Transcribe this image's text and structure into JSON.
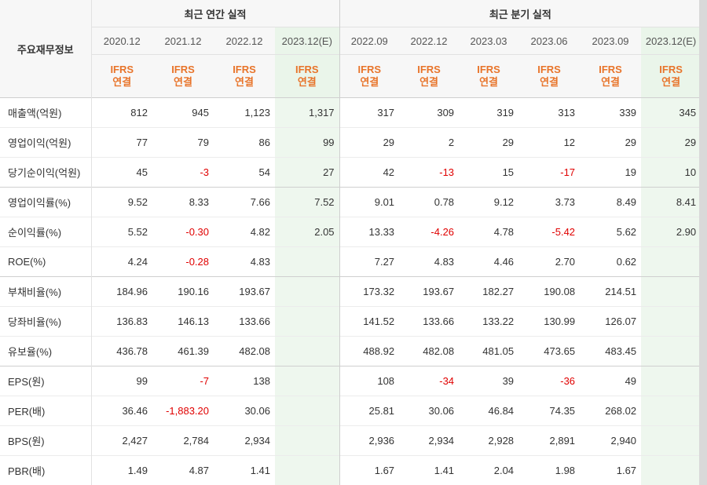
{
  "header": {
    "label_title": "주요재무정보",
    "group_annual": "최근 연간 실적",
    "group_quarter": "최근 분기 실적",
    "periods": [
      "2020.12",
      "2021.12",
      "2022.12",
      "2023.12(E)",
      "2022.09",
      "2022.12",
      "2023.03",
      "2023.06",
      "2023.09",
      "2023.12(E)"
    ],
    "ifrs_top": "IFRS",
    "ifrs_bottom": "연결"
  },
  "rows": [
    {
      "label": "매출액(억원)",
      "values": [
        "812",
        "945",
        "1,123",
        "1,317",
        "317",
        "309",
        "319",
        "313",
        "339",
        "345"
      ]
    },
    {
      "label": "영업이익(억원)",
      "values": [
        "77",
        "79",
        "86",
        "99",
        "29",
        "2",
        "29",
        "12",
        "29",
        "29"
      ]
    },
    {
      "label": "당기순이익(억원)",
      "values": [
        "45",
        "-3",
        "54",
        "27",
        "42",
        "-13",
        "15",
        "-17",
        "19",
        "10"
      ]
    },
    {
      "label": "영업이익률(%)",
      "values": [
        "9.52",
        "8.33",
        "7.66",
        "7.52",
        "9.01",
        "0.78",
        "9.12",
        "3.73",
        "8.49",
        "8.41"
      ]
    },
    {
      "label": "순이익률(%)",
      "values": [
        "5.52",
        "-0.30",
        "4.82",
        "2.05",
        "13.33",
        "-4.26",
        "4.78",
        "-5.42",
        "5.62",
        "2.90"
      ]
    },
    {
      "label": "ROE(%)",
      "values": [
        "4.24",
        "-0.28",
        "4.83",
        "",
        "7.27",
        "4.83",
        "4.46",
        "2.70",
        "0.62",
        ""
      ]
    },
    {
      "label": "부채비율(%)",
      "values": [
        "184.96",
        "190.16",
        "193.67",
        "",
        "173.32",
        "193.67",
        "182.27",
        "190.08",
        "214.51",
        ""
      ]
    },
    {
      "label": "당좌비율(%)",
      "values": [
        "136.83",
        "146.13",
        "133.66",
        "",
        "141.52",
        "133.66",
        "133.22",
        "130.99",
        "126.07",
        ""
      ]
    },
    {
      "label": "유보율(%)",
      "values": [
        "436.78",
        "461.39",
        "482.08",
        "",
        "488.92",
        "482.08",
        "481.05",
        "473.65",
        "483.45",
        ""
      ]
    },
    {
      "label": "EPS(원)",
      "values": [
        "99",
        "-7",
        "138",
        "",
        "108",
        "-34",
        "39",
        "-36",
        "49",
        ""
      ]
    },
    {
      "label": "PER(배)",
      "values": [
        "36.46",
        "-1,883.20",
        "30.06",
        "",
        "25.81",
        "30.06",
        "46.84",
        "74.35",
        "268.02",
        ""
      ]
    },
    {
      "label": "BPS(원)",
      "values": [
        "2,427",
        "2,784",
        "2,934",
        "",
        "2,936",
        "2,934",
        "2,928",
        "2,891",
        "2,940",
        ""
      ]
    },
    {
      "label": "PBR(배)",
      "values": [
        "1.49",
        "4.87",
        "1.41",
        "",
        "1.67",
        "1.41",
        "2.04",
        "1.98",
        "1.67",
        ""
      ]
    }
  ],
  "colors": {
    "ifrs": "#e8742a",
    "negative": "#e00000",
    "estimate_bg": "#eef7ee",
    "header_bg": "#f7f7f7"
  }
}
